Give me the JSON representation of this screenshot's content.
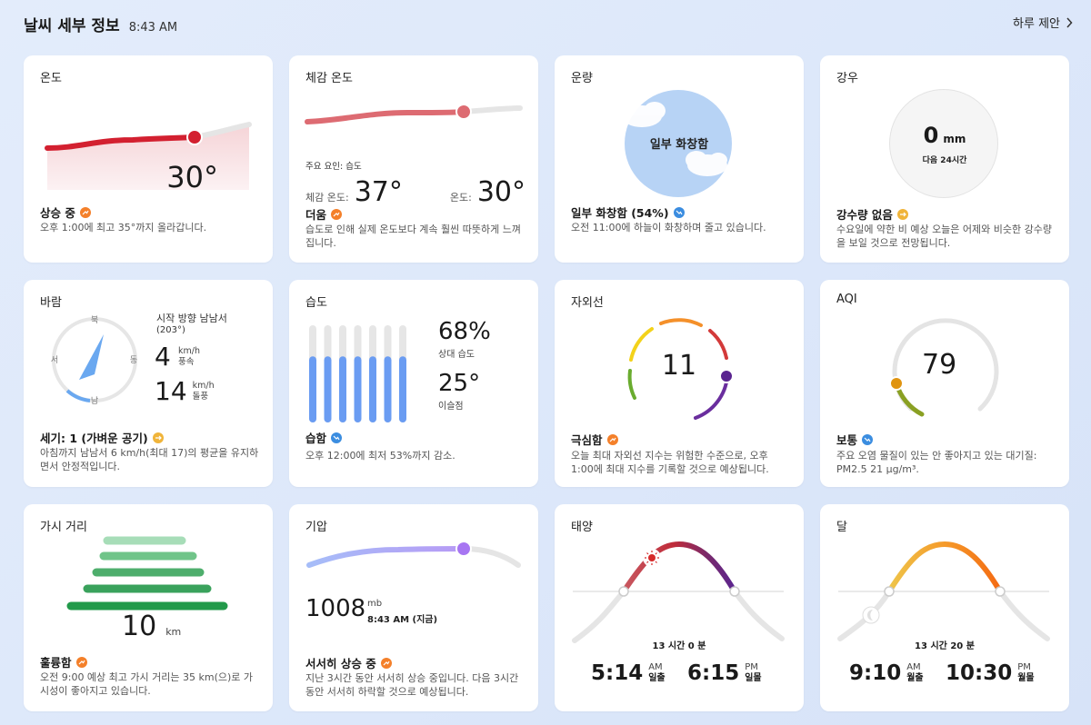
{
  "header": {
    "title": "날씨 세부 정보",
    "time": "8:43 AM",
    "suggest_label": "하루 제안"
  },
  "colors": {
    "up": "#f4802a",
    "down": "#3b8de0",
    "neutral": "#f0b43a"
  },
  "cards": {
    "temperature": {
      "title": "온도",
      "value": "30°",
      "status": "상승 중",
      "trend": "up",
      "desc": "오후 1:00에 최고 35°까지 올라갑니다."
    },
    "feels_like": {
      "title": "체감 온도",
      "factor": "주요 요인: 습도",
      "feels_label": "체감 온도:",
      "feels_value": "37°",
      "temp_label": "온도:",
      "temp_value": "30°",
      "status": "더움",
      "trend": "up",
      "desc": "습도로 인해 실제 온도보다 계속 훨씬 따뜻하게 느껴집니다."
    },
    "cloud": {
      "title": "운량",
      "center": "일부 화창함",
      "status": "일부 화창함 (54%)",
      "trend": "down",
      "desc": "오전 11:00에 하늘이 화창하며 줄고 있습니다."
    },
    "rain": {
      "title": "강우",
      "value": "0",
      "unit": "mm",
      "sub": "다음 24시간",
      "status": "강수량 없음",
      "trend": "neutral",
      "desc": "수요일에 약한 비 예상 오늘은 어제와 비슷한 강수량을 보일 것으로 전망됩니다."
    },
    "wind": {
      "title": "바람",
      "dir_text": "시작 방향 남남서",
      "dir_deg": "(203°)",
      "speed": "4",
      "speed_unit": "km/h",
      "speed_label": "풍속",
      "gust": "14",
      "gust_unit": "km/h",
      "gust_label": "돌풍",
      "compass": {
        "n": "북",
        "e": "동",
        "s": "남",
        "w": "서"
      },
      "status": "세기: 1 (가벼운 공기)",
      "trend": "neutral",
      "desc": "아침까지 남남서 6 km/h(최대 17)의 평균을 유지하면서 안정적입니다."
    },
    "humidity": {
      "title": "습도",
      "value": "68%",
      "value_label": "상대 습도",
      "dew": "25°",
      "dew_label": "이슬점",
      "fraction": 0.68,
      "status": "습함",
      "trend": "down",
      "desc": "오후 12:00에 최저 53%까지 감소."
    },
    "uv": {
      "title": "자외선",
      "value": "11",
      "status": "극심함",
      "trend": "up",
      "desc": "오늘 최대 자외선 지수는 위험한 수준으로, 오후 1:00에 최대 지수를 기록할 것으로 예상됩니다."
    },
    "aqi": {
      "title": "AQI",
      "value": "79",
      "status": "보통",
      "trend": "down",
      "desc": "주요 오염 물질이 있는 안 좋아지고 있는 대기질: PM2.5 21 µg/m³."
    },
    "visibility": {
      "title": "가시 거리",
      "value": "10",
      "unit": "km",
      "status": "훌륭함",
      "trend": "up",
      "desc": "오전 9:00 예상 최고 가시 거리는 35 km(으)로 가시성이 좋아지고 있습니다."
    },
    "pressure": {
      "title": "기압",
      "value": "1008",
      "unit": "mb",
      "time": "8:43 AM (지금)",
      "status": "서서히 상승 중",
      "trend": "up",
      "desc": "지난 3시간 동안 서서히 상승 중입니다. 다음 3시간 동안 서서히 하락할 것으로 예상됩니다."
    },
    "sun": {
      "title": "태양",
      "duration": "13 시간 0 분",
      "rise": "5:14",
      "rise_ampm": "AM",
      "rise_label": "일출",
      "set": "6:15",
      "set_ampm": "PM",
      "set_label": "일몰"
    },
    "moon": {
      "title": "달",
      "duration": "13 시간 20 분",
      "rise": "9:10",
      "rise_ampm": "AM",
      "rise_label": "월출",
      "set": "10:30",
      "set_ampm": "PM",
      "set_label": "월몰"
    }
  }
}
